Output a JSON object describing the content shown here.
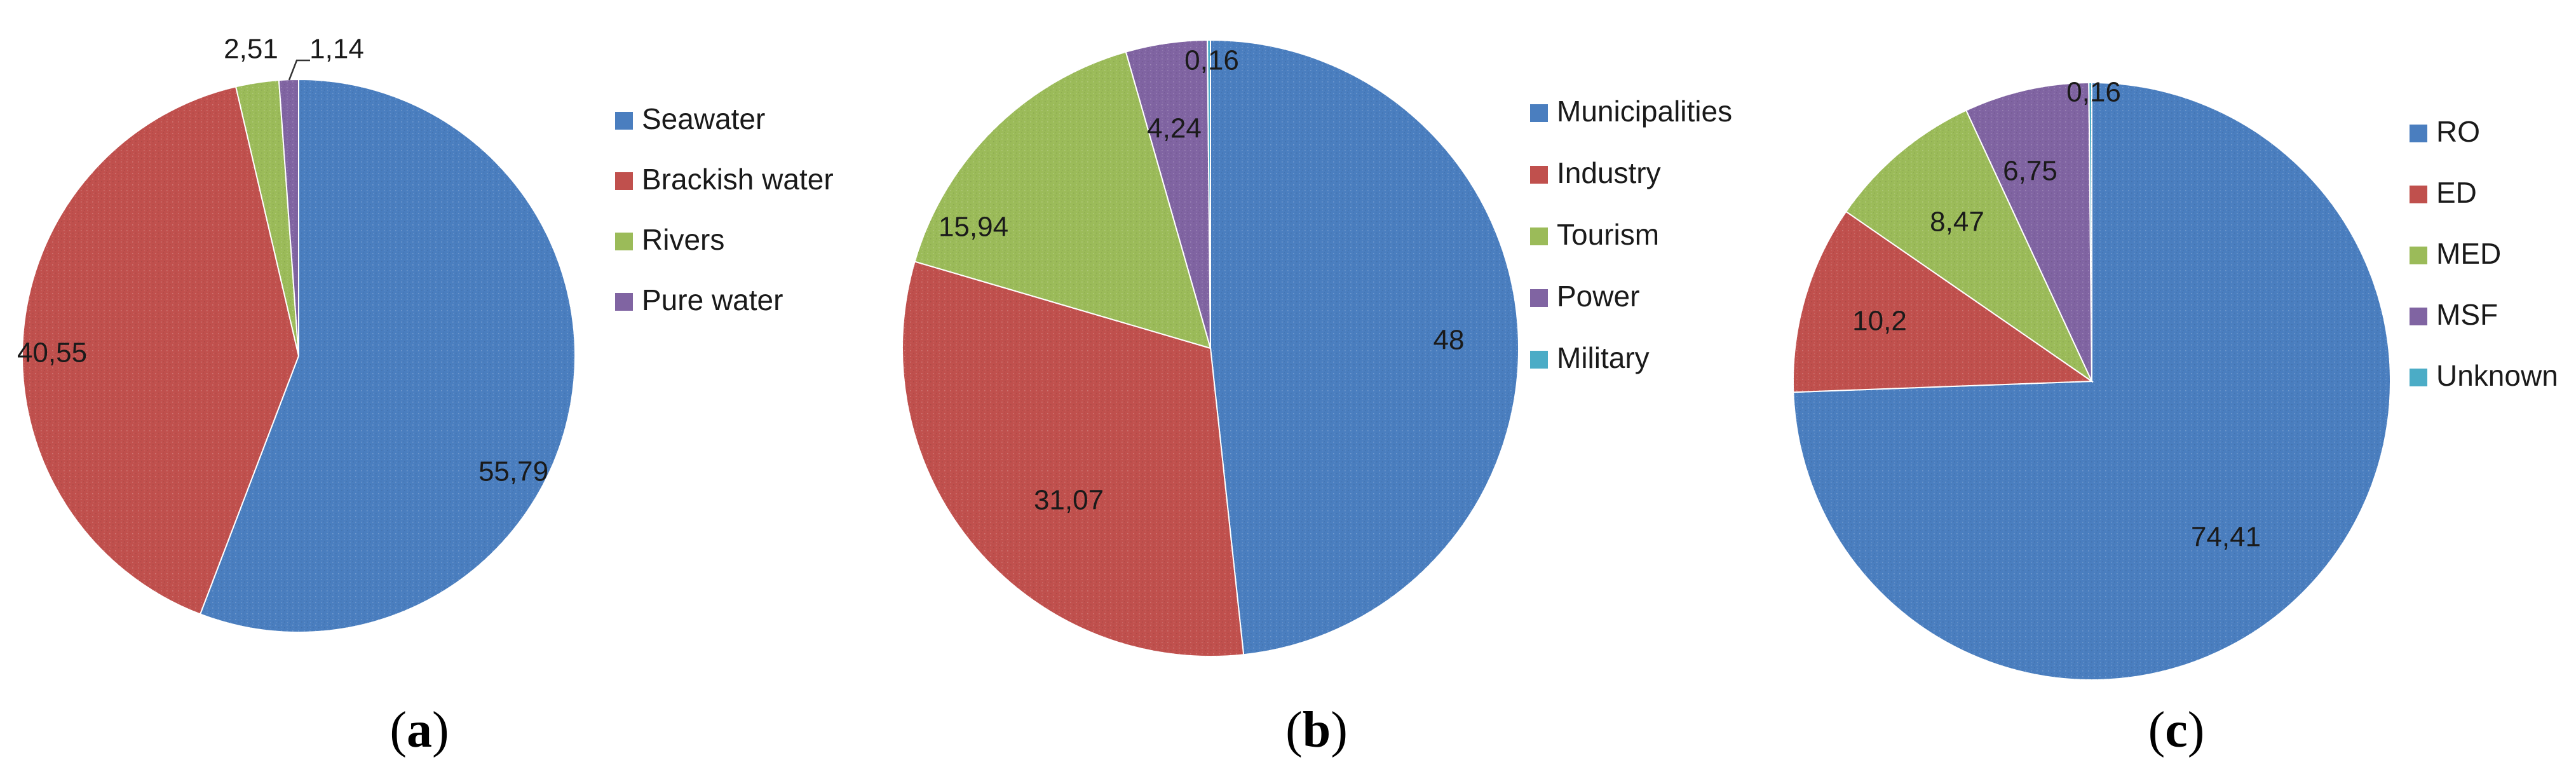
{
  "panel_labels": [
    "(a)",
    "(b)",
    "(c)"
  ],
  "colors": {
    "blue": "#4a7ebf",
    "red": "#c0504d",
    "green": "#9bbb59",
    "purple": "#8064a2",
    "cyan": "#4bacc6"
  },
  "chart_data": [
    {
      "type": "pie",
      "panel": "(a)",
      "title": "",
      "categories": [
        "Seawater",
        "Brackish water",
        "Rivers",
        "Pure water"
      ],
      "values": [
        55.79,
        40.55,
        2.51,
        1.14
      ],
      "value_labels": [
        "55,79",
        "40,55",
        "2,51",
        "1,14"
      ],
      "colors": [
        "#4a7ebf",
        "#c0504d",
        "#9bbb59",
        "#8064a2"
      ],
      "legend": "right"
    },
    {
      "type": "pie",
      "panel": "(b)",
      "title": "",
      "categories": [
        "Municipalities",
        "Industry",
        "Tourism",
        "Power",
        "Military"
      ],
      "values": [
        48,
        31.07,
        15.94,
        4.24,
        0.16
      ],
      "value_labels": [
        "48",
        "31,07",
        "15,94",
        "4,24",
        "0,16"
      ],
      "colors": [
        "#4a7ebf",
        "#c0504d",
        "#9bbb59",
        "#8064a2",
        "#4bacc6"
      ],
      "legend": "right"
    },
    {
      "type": "pie",
      "panel": "(c)",
      "title": "",
      "categories": [
        "RO",
        "ED",
        "MED",
        "MSF",
        "Unknown"
      ],
      "values": [
        74.41,
        10.2,
        8.47,
        6.75,
        0.16
      ],
      "value_labels": [
        "74,41",
        "10,2",
        "8,47",
        "6,75",
        "0,16"
      ],
      "colors": [
        "#4a7ebf",
        "#c0504d",
        "#9bbb59",
        "#8064a2",
        "#4bacc6"
      ],
      "legend": "right"
    }
  ]
}
